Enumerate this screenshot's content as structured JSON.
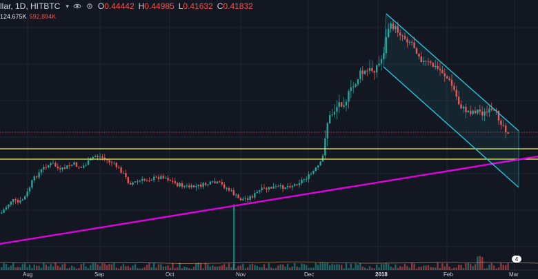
{
  "header": {
    "symbol": "llar, 1D, HITBTC",
    "dropdown": "▾",
    "ohlc": [
      {
        "k": "O",
        "v": "0.44442"
      },
      {
        "k": "H",
        "v": "0.44985"
      },
      {
        "k": "L",
        "v": "0.41632"
      },
      {
        "k": "C",
        "v": "0.41832"
      }
    ]
  },
  "volume_header": {
    "a": "124.675K",
    "b": "592.894K"
  },
  "x_axis": [
    "Aug",
    "Sep",
    "Oct",
    "Nov",
    "Dec",
    "2018",
    "Feb",
    "Mar"
  ],
  "badge": "4",
  "colors": {
    "background": "#131722",
    "grid": "#1f2433",
    "up": "#26a69a",
    "down": "#ef5350",
    "channel": "#26c6da",
    "support": "#f5f749",
    "trend": "#e100e1",
    "price_line": "#ef5350"
  },
  "chart_data": {
    "type": "candlestick",
    "xlabel": "",
    "ylabel": "",
    "series": [],
    "grid": true,
    "legend": "none"
  }
}
